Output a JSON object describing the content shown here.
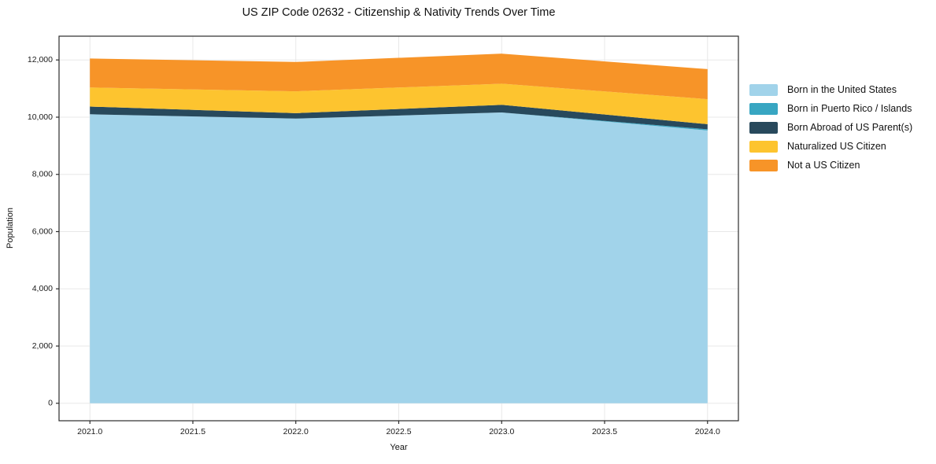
{
  "title": "US ZIP Code 02632 - Citizenship & Nativity Trends Over Time",
  "chart_data": {
    "type": "area",
    "stacked": true,
    "title": "US ZIP Code 02632 - Citizenship & Nativity Trends Over Time",
    "xlabel": "Year",
    "ylabel": "Population",
    "x": [
      2021,
      2022,
      2023,
      2024
    ],
    "series": [
      {
        "name": "Born in the United States",
        "color": "#a1d3ea",
        "values": [
          10100,
          9950,
          10165,
          9535
        ]
      },
      {
        "name": "Born in Puerto Rico / Islands",
        "color": "#38a6c2",
        "values": [
          0,
          0,
          0,
          40
        ]
      },
      {
        "name": "Born Abroad of US Parent(s)",
        "color": "#28495c",
        "values": [
          270,
          190,
          265,
          180
        ]
      },
      {
        "name": "Naturalized US Citizen",
        "color": "#fdc42f",
        "values": [
          670,
          765,
          740,
          875
        ]
      },
      {
        "name": "Not a US Citizen",
        "color": "#f79428",
        "values": [
          1010,
          1025,
          1050,
          1050
        ]
      }
    ],
    "totals_by_year": [
      12050,
      11930,
      12220,
      11680
    ],
    "xticks": {
      "values": [
        2021.0,
        2021.5,
        2022.0,
        2022.5,
        2023.0,
        2023.5,
        2024.0
      ],
      "labels": [
        "2021.0",
        "2021.5",
        "2022.0",
        "2022.5",
        "2023.0",
        "2023.5",
        "2024.0"
      ]
    },
    "yticks": {
      "values": [
        0,
        2000,
        4000,
        6000,
        8000,
        10000,
        12000
      ],
      "labels": [
        "0",
        "2,000",
        "4,000",
        "6,000",
        "8,000",
        "10,000",
        "12,000"
      ]
    },
    "xlim": [
      2020.85,
      2024.15
    ],
    "ylim": [
      -611,
      12831
    ],
    "grid": true,
    "legend_position": "right-outside"
  },
  "colors": {
    "background": "#ffffff",
    "grid": "#e8e8e8",
    "spine": "#2b2b2b",
    "tick_text": "#1a1a1a"
  }
}
